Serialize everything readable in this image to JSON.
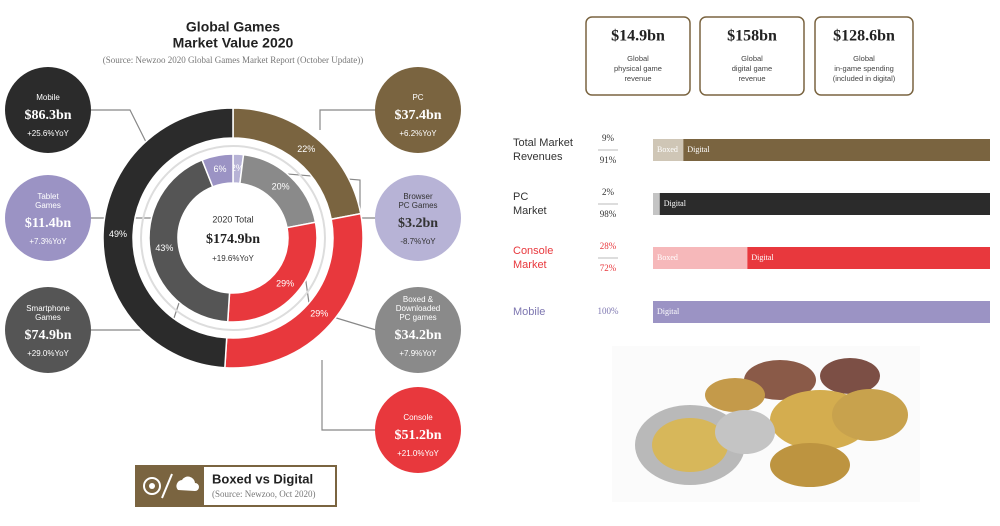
{
  "donut": {
    "title": [
      "Global Games",
      "Market Value 2020"
    ],
    "source": "(Source: Newzoo 2020 Global Games Market Report (October Update))",
    "center": {
      "label": "2020 Total",
      "value": "$174.9bn",
      "growth": "+19.6%YoY"
    },
    "outer_ring": [
      {
        "value": 22,
        "value_label": "22%",
        "color": "#7a6440"
      },
      {
        "value": 29,
        "value_label": "29%",
        "color": "#e8383d"
      },
      {
        "value": 49,
        "value_label": "49%",
        "color": "#2b2b2b"
      }
    ],
    "inner_ring": [
      {
        "value": 2,
        "value_label": "2%",
        "color": "#b7b3d6"
      },
      {
        "value": 20,
        "value_label": "20%",
        "color": "#8a8a8a"
      },
      {
        "value": 29,
        "value_label": "29%",
        "color": "#e8383d"
      },
      {
        "value": 43,
        "value_label": "43%",
        "color": "#555555"
      },
      {
        "value": 6,
        "value_label": "6%",
        "color": "#9b93c4"
      }
    ],
    "bubbles": [
      {
        "name": [
          "Mobile"
        ],
        "value": "$86.3bn",
        "growth": "+25.6%YoY",
        "color": "#2b2b2b"
      },
      {
        "name": [
          "Tablet",
          "Games"
        ],
        "value": "$11.4bn",
        "growth": "+7.3%YoY",
        "color": "#9b93c4"
      },
      {
        "name": [
          "Smartphone",
          "Games"
        ],
        "value": "$74.9bn",
        "growth": "+29.0%YoY",
        "color": "#555555"
      },
      {
        "name": [
          "PC"
        ],
        "value": "$37.4bn",
        "growth": "+6.2%YoY",
        "color": "#7a6440"
      },
      {
        "name": [
          "Browser",
          "PC Games"
        ],
        "value": "$3.2bn",
        "growth": "-8.7%YoY",
        "color": "#b7b3d6"
      },
      {
        "name": [
          "Boxed &",
          "Downloaded",
          "PC games"
        ],
        "value": "$34.2bn",
        "growth": "+7.9%YoY",
        "color": "#8a8a8a"
      },
      {
        "name": [
          "Console"
        ],
        "value": "$51.2bn",
        "growth": "+21.0%YoY",
        "color": "#e8383d"
      }
    ],
    "footer": {
      "title": "Boxed vs Digital",
      "source": "(Source: Newzoo, Oct 2020)"
    }
  },
  "summary_boxes": [
    {
      "value": "$14.9bn",
      "text": [
        "Global",
        "physical game",
        "revenue"
      ]
    },
    {
      "value": "$158bn",
      "text": [
        "Global",
        "digital game",
        "revenue"
      ]
    },
    {
      "value": "$128.6bn",
      "text": [
        "Global",
        "in-game spending",
        "(included in digital)"
      ]
    }
  ],
  "bars": [
    {
      "label": [
        "Total Market",
        "Revenues"
      ],
      "label_color": "#333333",
      "segments": [
        {
          "name": "Boxed",
          "value": 9,
          "value_label": "9%",
          "color": "#cfc6b6"
        },
        {
          "name": "Digital",
          "value": 91,
          "value_label": "91%",
          "color": "#7a6440"
        }
      ]
    },
    {
      "label": [
        "PC",
        "Market"
      ],
      "label_color": "#333333",
      "segments": [
        {
          "name": null,
          "value": 2,
          "value_label": "2%",
          "color": "#c4c4c4"
        },
        {
          "name": "Digital",
          "value": 98,
          "value_label": "98%",
          "color": "#2b2b2b"
        }
      ]
    },
    {
      "label": [
        "Console",
        "Market"
      ],
      "label_color": "#e8383d",
      "segments": [
        {
          "name": "Boxed",
          "value": 28,
          "value_label": "28%",
          "color": "#f6b8ba"
        },
        {
          "name": "Digital",
          "value": 72,
          "value_label": "72%",
          "color": "#e8383d"
        }
      ]
    },
    {
      "label": [
        "Mobile"
      ],
      "label_color": "#7d76b0",
      "segments": [
        {
          "name": "Digital",
          "value": 100,
          "value_label": "100%",
          "color": "#9b93c4"
        }
      ]
    }
  ]
}
